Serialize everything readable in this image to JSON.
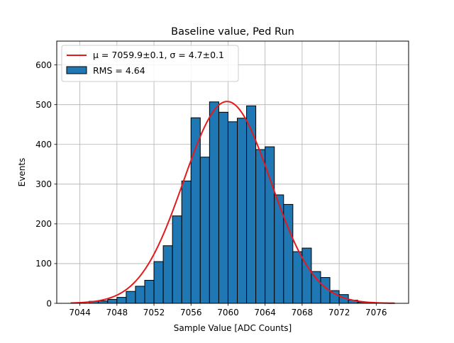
{
  "chart_data": {
    "type": "bar",
    "title": "Baseline value, Ped Run",
    "xlabel": "Sample Value [ADC Counts]",
    "ylabel": "Events",
    "xlim": [
      7041.5,
      7079.5
    ],
    "ylim": [
      0,
      660
    ],
    "xticks": [
      7044,
      7048,
      7052,
      7056,
      7060,
      7064,
      7068,
      7072,
      7076
    ],
    "yticks": [
      0,
      100,
      200,
      300,
      400,
      500,
      600
    ],
    "grid": true,
    "legend_position": "top-left",
    "colors": {
      "bars": "#1f77b4",
      "bar_edge": "#000000",
      "fit": "#e41a1c",
      "grid": "#b0b0b0"
    },
    "histogram": {
      "name": "RMS = 4.64",
      "bin_width": 1,
      "bin_edges_start": 7045,
      "counts": [
        5,
        6,
        10,
        15,
        30,
        43,
        58,
        105,
        145,
        220,
        308,
        467,
        368,
        507,
        481,
        457,
        466,
        497,
        387,
        394,
        273,
        249,
        130,
        139,
        80,
        65,
        32,
        22,
        8,
        3
      ]
    },
    "fit": {
      "name": "μ = 7059.9±0.1, σ = 4.7±0.1",
      "type": "gaussian",
      "mu": 7059.9,
      "sigma": 4.7,
      "amplitude": 508,
      "x_range": [
        7043,
        7078
      ]
    }
  }
}
